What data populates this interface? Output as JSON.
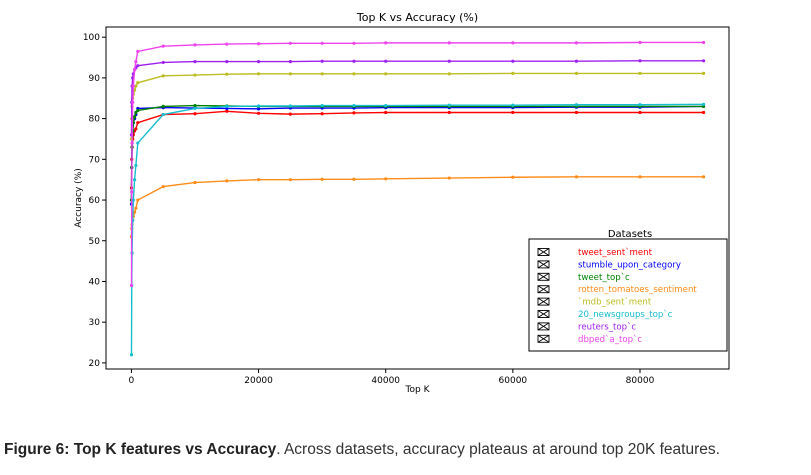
{
  "chart_data": {
    "type": "line",
    "title": "Top K vs Accuracy (%)",
    "xlabel": "Top K",
    "ylabel": "Accuracy (%)",
    "xlim": [
      -4000,
      94000
    ],
    "ylim": [
      18.5,
      102.5
    ],
    "xticks": [
      0,
      20000,
      40000,
      60000,
      80000
    ],
    "yticks": [
      20,
      30,
      40,
      50,
      60,
      70,
      80,
      90,
      100
    ],
    "legend_title": "Datasets",
    "legend_position": "lower-right",
    "grid": false,
    "series": [
      {
        "name": "tweet_sent`ment",
        "color": "#ff0000",
        "x": [
          10,
          50,
          100,
          200,
          300,
          500,
          700,
          1000,
          5000,
          10000,
          15000,
          20000,
          25000,
          30000,
          35000,
          40000,
          50000,
          60000,
          70000,
          80000,
          90000
        ],
        "y": [
          63,
          70,
          73,
          75,
          76,
          77,
          77.5,
          79,
          81,
          81.2,
          81.8,
          81.3,
          81.1,
          81.2,
          81.4,
          81.5,
          81.5,
          81.5,
          81.5,
          81.5,
          81.5
        ]
      },
      {
        "name": "stumble_upon_category",
        "color": "#0000ff",
        "x": [
          10,
          50,
          100,
          200,
          300,
          500,
          700,
          1000,
          5000,
          10000,
          15000,
          20000,
          25000,
          30000,
          35000,
          40000,
          50000,
          60000,
          70000,
          80000,
          90000
        ],
        "y": [
          59,
          68,
          74,
          77,
          79,
          80,
          81,
          82.5,
          82.7,
          82.6,
          82.5,
          82.4,
          82.6,
          82.6,
          82.6,
          82.7,
          82.7,
          82.7,
          82.8,
          82.8,
          83
        ]
      },
      {
        "name": "tweet_top`c",
        "color": "#008000",
        "x": [
          10,
          50,
          100,
          200,
          300,
          500,
          700,
          1000,
          5000,
          10000,
          15000,
          20000,
          25000,
          30000,
          35000,
          40000,
          50000,
          60000,
          70000,
          80000,
          90000
        ],
        "y": [
          60,
          68,
          73,
          77,
          79,
          80.5,
          81.5,
          82,
          83,
          83.2,
          83.1,
          83,
          83,
          83,
          83,
          83,
          83,
          83,
          83,
          83,
          83
        ]
      },
      {
        "name": "rotten_tomatoes_sentiment",
        "color": "#ff8c1a",
        "x": [
          10,
          50,
          100,
          200,
          300,
          500,
          700,
          1000,
          5000,
          10000,
          15000,
          20000,
          25000,
          30000,
          35000,
          40000,
          50000,
          60000,
          70000,
          80000,
          90000
        ],
        "y": [
          51,
          53,
          54,
          55,
          56,
          57,
          58,
          60,
          63.3,
          64.3,
          64.7,
          65,
          65,
          65.1,
          65.1,
          65.2,
          65.4,
          65.6,
          65.7,
          65.7,
          65.7
        ]
      },
      {
        "name": "`mdb_sent`ment",
        "color": "#bcbd22",
        "x": [
          10,
          50,
          100,
          200,
          300,
          500,
          700,
          1000,
          5000,
          10000,
          15000,
          20000,
          25000,
          30000,
          35000,
          40000,
          50000,
          60000,
          70000,
          80000,
          90000
        ],
        "y": [
          75,
          80,
          83,
          85,
          86,
          87,
          88,
          88.8,
          90.5,
          90.7,
          90.9,
          91,
          91,
          91,
          91,
          91,
          91,
          91.1,
          91.1,
          91.1,
          91.1
        ]
      },
      {
        "name": "20_newsgroups_top`c",
        "color": "#17becf",
        "x": [
          10,
          50,
          100,
          200,
          300,
          500,
          700,
          1000,
          5000,
          10000,
          15000,
          20000,
          25000,
          30000,
          35000,
          40000,
          50000,
          60000,
          70000,
          80000,
          90000
        ],
        "y": [
          22,
          39,
          47,
          55,
          60,
          65,
          68.5,
          74,
          81,
          82.5,
          83,
          83.1,
          83.1,
          83.2,
          83.2,
          83.2,
          83.3,
          83.3,
          83.4,
          83.4,
          83.5
        ]
      },
      {
        "name": "reuters_top`c",
        "color": "#a020f0",
        "x": [
          10,
          50,
          100,
          200,
          300,
          500,
          700,
          1000,
          5000,
          10000,
          15000,
          20000,
          25000,
          30000,
          35000,
          40000,
          50000,
          60000,
          70000,
          80000,
          90000
        ],
        "y": [
          76,
          84,
          88,
          90,
          91,
          92,
          92.5,
          93,
          93.8,
          94,
          94,
          94,
          94,
          94.1,
          94.1,
          94.1,
          94.1,
          94.1,
          94.1,
          94.2,
          94.2
        ]
      },
      {
        "name": "dbped`a_top`c",
        "color": "#ee44ee",
        "x": [
          10,
          50,
          100,
          200,
          300,
          500,
          700,
          1000,
          5000,
          10000,
          15000,
          20000,
          25000,
          30000,
          35000,
          40000,
          50000,
          60000,
          70000,
          80000,
          90000
        ],
        "y": [
          39,
          62,
          74,
          84,
          88,
          92,
          94,
          96.5,
          97.8,
          98.1,
          98.3,
          98.4,
          98.5,
          98.5,
          98.5,
          98.6,
          98.6,
          98.6,
          98.6,
          98.7,
          98.7
        ]
      }
    ]
  },
  "caption": {
    "bold": "Figure 6: Top K features vs Accuracy",
    "text": ". Across datasets, accuracy plateaus at around top 20K features."
  }
}
